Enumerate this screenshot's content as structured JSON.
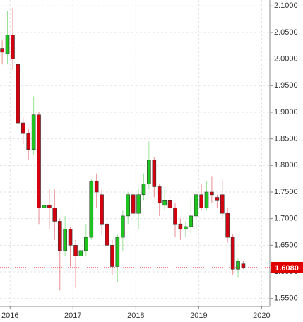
{
  "chart_data": {
    "type": "candlestick",
    "x": [
      2015.875,
      2015.958,
      2016.042,
      2016.125,
      2016.208,
      2016.292,
      2016.375,
      2016.458,
      2016.542,
      2016.625,
      2016.708,
      2016.792,
      2016.875,
      2016.958,
      2017.042,
      2017.125,
      2017.208,
      2017.292,
      2017.375,
      2017.458,
      2017.542,
      2017.625,
      2017.708,
      2017.792,
      2017.875,
      2017.958,
      2018.042,
      2018.125,
      2018.208,
      2018.292,
      2018.375,
      2018.458,
      2018.542,
      2018.625,
      2018.708,
      2018.792,
      2018.875,
      2018.958,
      2019.042,
      2019.125,
      2019.208,
      2019.292,
      2019.375,
      2019.458,
      2019.542,
      2019.625,
      2019.708
    ],
    "open": [
      2.02,
      2.01,
      2.045,
      1.99,
      1.88,
      1.86,
      1.83,
      1.895,
      1.72,
      1.725,
      1.72,
      1.695,
      1.64,
      1.68,
      1.65,
      1.63,
      1.64,
      1.665,
      1.77,
      1.745,
      1.69,
      1.65,
      1.61,
      1.665,
      1.705,
      1.745,
      1.71,
      1.745,
      1.765,
      1.81,
      1.76,
      1.725,
      1.735,
      1.72,
      1.69,
      1.68,
      1.685,
      1.705,
      1.745,
      1.72,
      1.75,
      1.74,
      1.745,
      1.71,
      1.665,
      1.605,
      1.615
    ],
    "high": [
      2.035,
      2.09,
      2.097,
      1.995,
      1.89,
      1.87,
      1.93,
      1.9,
      1.74,
      1.755,
      1.755,
      1.7,
      1.705,
      1.685,
      1.66,
      1.665,
      1.69,
      1.775,
      1.785,
      1.755,
      1.7,
      1.66,
      1.67,
      1.715,
      1.75,
      1.75,
      1.755,
      1.785,
      1.845,
      1.815,
      1.765,
      1.755,
      1.745,
      1.73,
      1.7,
      1.695,
      1.74,
      1.75,
      1.765,
      1.77,
      1.78,
      1.745,
      1.775,
      1.72,
      1.67,
      1.625,
      1.62
    ],
    "low": [
      1.99,
      1.99,
      1.98,
      1.87,
      1.84,
      1.81,
      1.82,
      1.69,
      1.7,
      1.68,
      1.66,
      1.565,
      1.63,
      1.61,
      1.57,
      1.61,
      1.63,
      1.66,
      1.72,
      1.67,
      1.63,
      1.595,
      1.58,
      1.64,
      1.69,
      1.7,
      1.68,
      1.735,
      1.755,
      1.74,
      1.705,
      1.715,
      1.7,
      1.665,
      1.66,
      1.665,
      1.67,
      1.67,
      1.715,
      1.715,
      1.73,
      1.72,
      1.7,
      1.655,
      1.595,
      1.59,
      1.605
    ],
    "close": [
      2.013,
      2.045,
      2.0,
      1.88,
      1.86,
      1.83,
      1.895,
      1.72,
      1.725,
      1.72,
      1.695,
      1.64,
      1.68,
      1.65,
      1.63,
      1.64,
      1.665,
      1.77,
      1.75,
      1.69,
      1.65,
      1.61,
      1.665,
      1.705,
      1.745,
      1.71,
      1.745,
      1.765,
      1.81,
      1.76,
      1.73,
      1.735,
      1.72,
      1.69,
      1.68,
      1.685,
      1.705,
      1.745,
      1.72,
      1.75,
      1.745,
      1.735,
      1.71,
      1.665,
      1.605,
      1.62,
      1.608
    ],
    "up_color": "#1dc41d",
    "down_color": "#d3000f",
    "xlim": [
      2015.84,
      2020.13
    ],
    "xticks": [
      2016,
      2017,
      2018,
      2019,
      2020
    ],
    "ylim": [
      1.535,
      2.111
    ],
    "yticks": [
      {
        "value": 1.55,
        "label": "1.5500"
      },
      {
        "value": 1.6,
        "label": "1.6000"
      },
      {
        "value": 1.65,
        "label": "1.6500"
      },
      {
        "value": 1.7,
        "label": "1.7000"
      },
      {
        "value": 1.75,
        "label": "1.7500"
      },
      {
        "value": 1.8,
        "label": "1.8000"
      },
      {
        "value": 1.85,
        "label": "1.8500"
      },
      {
        "value": 1.9,
        "label": "1.9000"
      },
      {
        "value": 1.95,
        "label": "1.9500"
      },
      {
        "value": 2.0,
        "label": "2.0000"
      },
      {
        "value": 2.05,
        "label": "2.0500"
      },
      {
        "value": 2.1,
        "label": "2.1000"
      }
    ],
    "last_price": {
      "value": 1.608,
      "label": "1.6080",
      "color": "#e00000"
    },
    "grid": true
  }
}
